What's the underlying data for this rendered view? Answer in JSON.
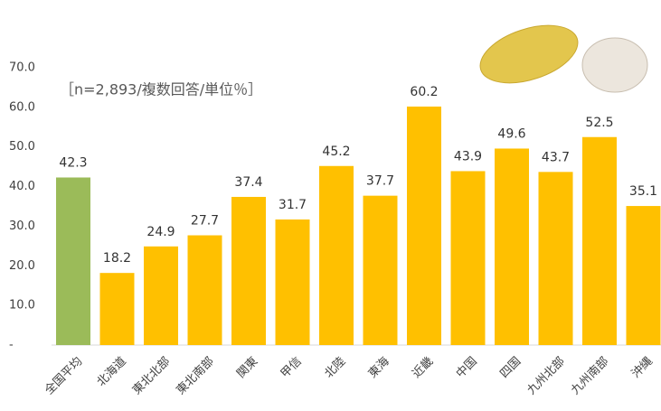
{
  "chart_data": {
    "type": "bar",
    "annotation": "［n=2,893/複数回答/単位％］",
    "categories": [
      "全国平均",
      "北海道",
      "東北北部",
      "東北南部",
      "関東",
      "甲信",
      "北陸",
      "東海",
      "近畿",
      "中国",
      "四国",
      "九州北部",
      "九州南部",
      "沖縄"
    ],
    "values": [
      42.3,
      18.2,
      24.9,
      27.7,
      37.4,
      31.7,
      45.2,
      37.7,
      60.2,
      43.9,
      49.6,
      43.7,
      52.5,
      35.1
    ],
    "colors": [
      "#9bbb59",
      "#ffc000",
      "#ffc000",
      "#ffc000",
      "#ffc000",
      "#ffc000",
      "#ffc000",
      "#ffc000",
      "#ffc000",
      "#ffc000",
      "#ffc000",
      "#ffc000",
      "#ffc000",
      "#ffc000"
    ],
    "ylim": [
      0,
      70
    ],
    "yticks": [
      {
        "value": 0,
        "label": "-"
      },
      {
        "value": 10,
        "label": "10.0"
      },
      {
        "value": 20,
        "label": "20.0"
      },
      {
        "value": 30,
        "label": "30.0"
      },
      {
        "value": 40,
        "label": "40.0"
      },
      {
        "value": 50,
        "label": "50.0"
      },
      {
        "value": 60,
        "label": "60.0"
      },
      {
        "value": 70,
        "label": "70.0"
      }
    ],
    "grid": false
  }
}
